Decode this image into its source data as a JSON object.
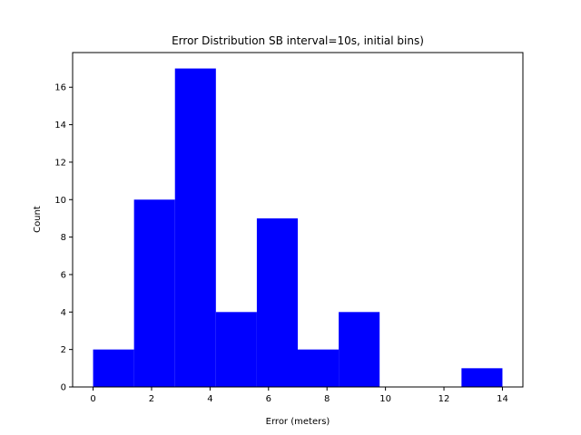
{
  "chart_data": {
    "type": "bar",
    "title": "Error Distribution SB interval=10s, initial bins)",
    "xlabel": "Error (meters)",
    "ylabel": "Count",
    "bin_edges": [
      0.0,
      1.4,
      2.8,
      4.2,
      5.6,
      7.0,
      8.4,
      9.8,
      11.2,
      12.6,
      14.0
    ],
    "values": [
      2,
      10,
      17,
      4,
      9,
      2,
      4,
      0,
      0,
      1
    ],
    "xlim": [
      -0.7,
      14.7
    ],
    "ylim": [
      0,
      17.85
    ],
    "xticks": [
      0,
      2,
      4,
      6,
      8,
      10,
      12,
      14
    ],
    "yticks": [
      0,
      2,
      4,
      6,
      8,
      10,
      12,
      14,
      16
    ],
    "bar_color": "#0000ff",
    "grid": false,
    "legend": "none"
  }
}
